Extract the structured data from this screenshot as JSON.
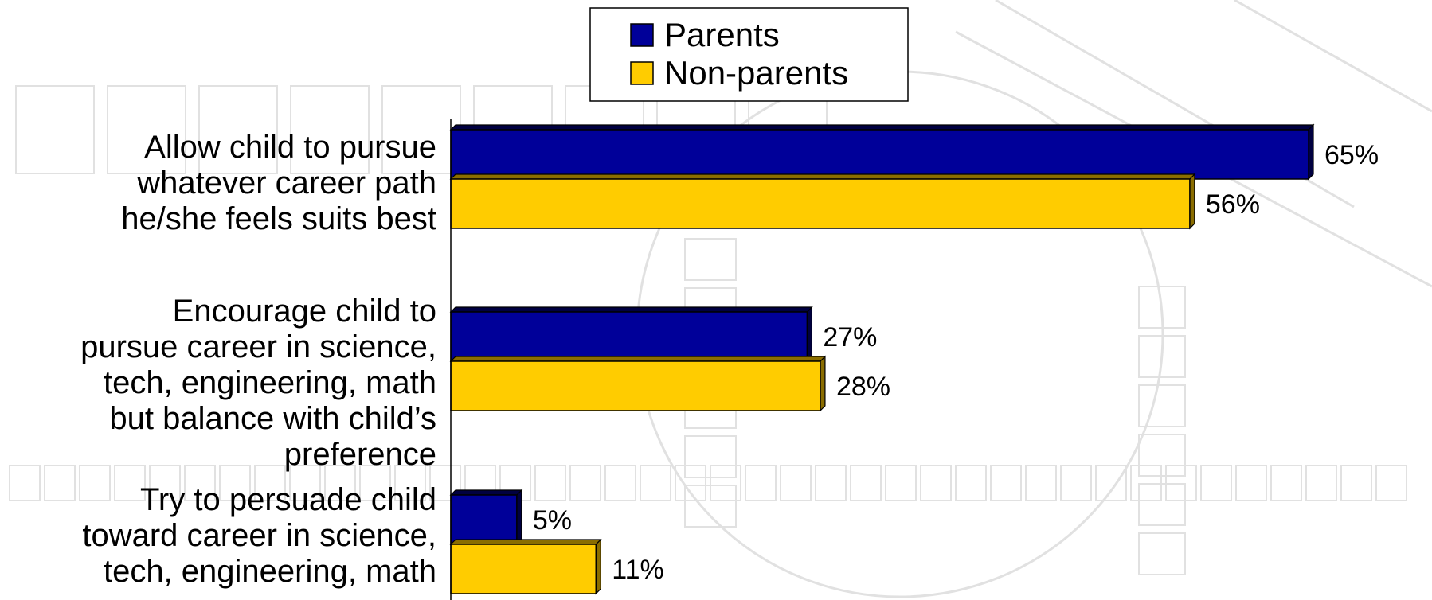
{
  "chart_data": {
    "type": "bar",
    "orientation": "horizontal",
    "categories": [
      [
        "Allow child to pursue",
        "whatever career path",
        "he/she feels suits best"
      ],
      [
        "Encourage child to",
        "pursue career in science,",
        "tech, engineering, math",
        "but balance with child’s",
        "preference"
      ],
      [
        "Try to persuade child",
        "toward career in science,",
        "tech, engineering, math"
      ]
    ],
    "series": [
      {
        "name": "Parents",
        "values": [
          65,
          27,
          5
        ],
        "labels": [
          "65%",
          "27%",
          "5%"
        ],
        "color": "#000099"
      },
      {
        "name": "Non-parents",
        "values": [
          56,
          28,
          11
        ],
        "labels": [
          "56%",
          "28%",
          "11%"
        ],
        "color": "#FFCC00"
      }
    ],
    "xlim": [
      0,
      65
    ],
    "grid": false,
    "legend_position": "top-center",
    "bar_style": "3d"
  },
  "colors": {
    "background": "#ffffff",
    "pattern": "#c9c9c9",
    "parents": "#000099",
    "non_parents": "#FFCC00",
    "parents_side": "#000040",
    "non_parents_side": "#8a6d00"
  }
}
